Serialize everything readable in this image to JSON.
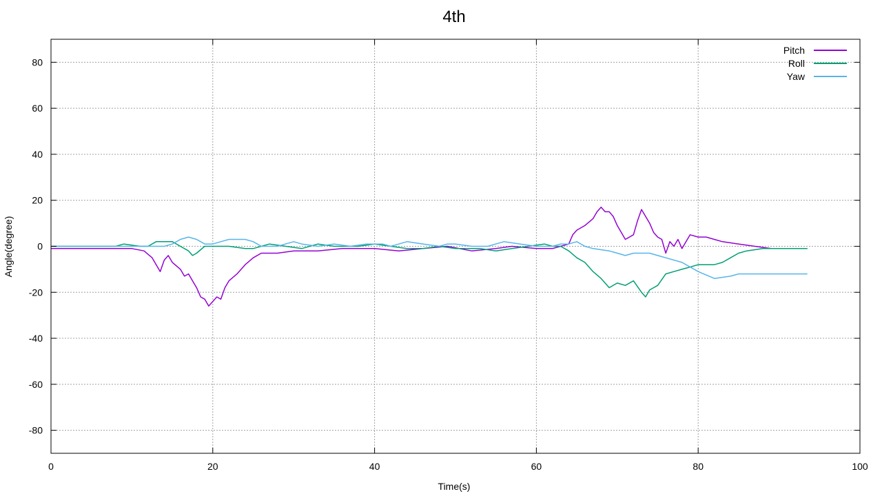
{
  "chart_data": {
    "type": "line",
    "title": "4th",
    "xlabel": "Time(s)",
    "ylabel": "Angle(degree)",
    "xlim": [
      0,
      100
    ],
    "ylim": [
      -90,
      90
    ],
    "xticks": [
      0,
      20,
      40,
      60,
      80,
      100
    ],
    "yticks": [
      -80,
      -60,
      -40,
      -20,
      0,
      20,
      40,
      60,
      80
    ],
    "grid": true,
    "legend_position": "top-right",
    "series": [
      {
        "name": "Pitch",
        "color": "#9400d3",
        "points": [
          [
            0,
            -1
          ],
          [
            7,
            -1
          ],
          [
            10,
            -1
          ],
          [
            11.5,
            -2
          ],
          [
            12.5,
            -5
          ],
          [
            13,
            -8
          ],
          [
            13.5,
            -11
          ],
          [
            14,
            -6
          ],
          [
            14.5,
            -4
          ],
          [
            15,
            -7
          ],
          [
            16,
            -10
          ],
          [
            16.5,
            -13
          ],
          [
            17,
            -12
          ],
          [
            17.5,
            -15
          ],
          [
            18,
            -18
          ],
          [
            18.5,
            -22
          ],
          [
            19,
            -23
          ],
          [
            19.5,
            -26
          ],
          [
            20,
            -24
          ],
          [
            20.5,
            -22
          ],
          [
            21,
            -23
          ],
          [
            21.5,
            -18
          ],
          [
            22,
            -15
          ],
          [
            23,
            -12
          ],
          [
            24,
            -8
          ],
          [
            25,
            -5
          ],
          [
            26,
            -3
          ],
          [
            28,
            -3
          ],
          [
            30,
            -2
          ],
          [
            33,
            -2
          ],
          [
            36,
            -1
          ],
          [
            40,
            -1
          ],
          [
            43,
            -2
          ],
          [
            46,
            -1
          ],
          [
            49,
            0
          ],
          [
            52,
            -2
          ],
          [
            55,
            -1
          ],
          [
            57,
            0
          ],
          [
            60,
            -1
          ],
          [
            62,
            -1
          ],
          [
            63,
            0
          ],
          [
            64,
            1
          ],
          [
            64.5,
            5
          ],
          [
            65,
            7
          ],
          [
            66,
            9
          ],
          [
            67,
            12
          ],
          [
            67.5,
            15
          ],
          [
            68,
            17
          ],
          [
            68.5,
            15
          ],
          [
            69,
            15
          ],
          [
            69.5,
            13
          ],
          [
            70,
            9
          ],
          [
            70.5,
            6
          ],
          [
            71,
            3
          ],
          [
            72,
            5
          ],
          [
            72.5,
            11
          ],
          [
            73,
            16
          ],
          [
            73.5,
            13
          ],
          [
            74,
            10
          ],
          [
            74.5,
            6
          ],
          [
            75,
            4
          ],
          [
            75.5,
            3
          ],
          [
            76,
            -3
          ],
          [
            76.5,
            2
          ],
          [
            77,
            0
          ],
          [
            77.5,
            3
          ],
          [
            78,
            -1
          ],
          [
            78.5,
            2
          ],
          [
            79,
            5
          ],
          [
            80,
            4
          ],
          [
            81,
            4
          ],
          [
            82,
            3
          ],
          [
            83,
            2
          ],
          [
            85,
            1
          ],
          [
            87,
            0
          ],
          [
            89,
            -1
          ],
          [
            92,
            -1
          ],
          [
            93.5,
            -1
          ]
        ]
      },
      {
        "name": "Roll",
        "color": "#009e73",
        "points": [
          [
            0,
            0
          ],
          [
            8,
            0
          ],
          [
            9,
            1
          ],
          [
            11,
            0
          ],
          [
            12,
            0
          ],
          [
            13,
            2
          ],
          [
            14,
            2
          ],
          [
            15,
            2
          ],
          [
            16,
            0
          ],
          [
            17,
            -2
          ],
          [
            17.5,
            -4
          ],
          [
            18,
            -3
          ],
          [
            19,
            0
          ],
          [
            20,
            0
          ],
          [
            22,
            0
          ],
          [
            24,
            -1
          ],
          [
            25,
            -1
          ],
          [
            27,
            1
          ],
          [
            29,
            0
          ],
          [
            31,
            -1
          ],
          [
            33,
            1
          ],
          [
            35,
            0
          ],
          [
            38,
            0
          ],
          [
            40,
            1
          ],
          [
            42,
            0
          ],
          [
            44,
            -1
          ],
          [
            46,
            -1
          ],
          [
            48,
            0
          ],
          [
            50,
            -1
          ],
          [
            53,
            -1
          ],
          [
            55,
            -2
          ],
          [
            57,
            -1
          ],
          [
            59,
            0
          ],
          [
            61,
            1
          ],
          [
            62,
            0
          ],
          [
            63,
            0
          ],
          [
            64,
            -2
          ],
          [
            65,
            -5
          ],
          [
            66,
            -7
          ],
          [
            67,
            -11
          ],
          [
            68,
            -14
          ],
          [
            68.5,
            -16
          ],
          [
            69,
            -18
          ],
          [
            70,
            -16
          ],
          [
            71,
            -17
          ],
          [
            72,
            -15
          ],
          [
            73,
            -20
          ],
          [
            73.5,
            -22
          ],
          [
            74,
            -19
          ],
          [
            75,
            -17
          ],
          [
            76,
            -12
          ],
          [
            77,
            -11
          ],
          [
            78,
            -10
          ],
          [
            79,
            -9
          ],
          [
            80,
            -8
          ],
          [
            82,
            -8
          ],
          [
            83,
            -7
          ],
          [
            84,
            -5
          ],
          [
            85,
            -3
          ],
          [
            86,
            -2
          ],
          [
            88,
            -1
          ],
          [
            90,
            -1
          ],
          [
            93.5,
            -1
          ]
        ]
      },
      {
        "name": "Yaw",
        "color": "#56b4e9",
        "points": [
          [
            0,
            0
          ],
          [
            10,
            0
          ],
          [
            12,
            0
          ],
          [
            14,
            0
          ],
          [
            15,
            1
          ],
          [
            16,
            3
          ],
          [
            17,
            4
          ],
          [
            18,
            3
          ],
          [
            19,
            1
          ],
          [
            20,
            1
          ],
          [
            21,
            2
          ],
          [
            22,
            3
          ],
          [
            23,
            3
          ],
          [
            24,
            3
          ],
          [
            25,
            2
          ],
          [
            26,
            0
          ],
          [
            28,
            0
          ],
          [
            30,
            2
          ],
          [
            31,
            1
          ],
          [
            33,
            0
          ],
          [
            35,
            1
          ],
          [
            37,
            0
          ],
          [
            39,
            1
          ],
          [
            41,
            1
          ],
          [
            42,
            0
          ],
          [
            43,
            1
          ],
          [
            44,
            2
          ],
          [
            46,
            1
          ],
          [
            48,
            0
          ],
          [
            49,
            1
          ],
          [
            50,
            1
          ],
          [
            52,
            0
          ],
          [
            54,
            0
          ],
          [
            56,
            2
          ],
          [
            58,
            1
          ],
          [
            60,
            0
          ],
          [
            62,
            0
          ],
          [
            63,
            1
          ],
          [
            64,
            1
          ],
          [
            65,
            2
          ],
          [
            66,
            0
          ],
          [
            67,
            -1
          ],
          [
            69,
            -2
          ],
          [
            70,
            -3
          ],
          [
            71,
            -4
          ],
          [
            72,
            -3
          ],
          [
            74,
            -3
          ],
          [
            75,
            -4
          ],
          [
            76,
            -5
          ],
          [
            78,
            -7
          ],
          [
            80,
            -11
          ],
          [
            82,
            -14
          ],
          [
            84,
            -13
          ],
          [
            85,
            -12
          ],
          [
            93.5,
            -12
          ]
        ]
      }
    ]
  }
}
